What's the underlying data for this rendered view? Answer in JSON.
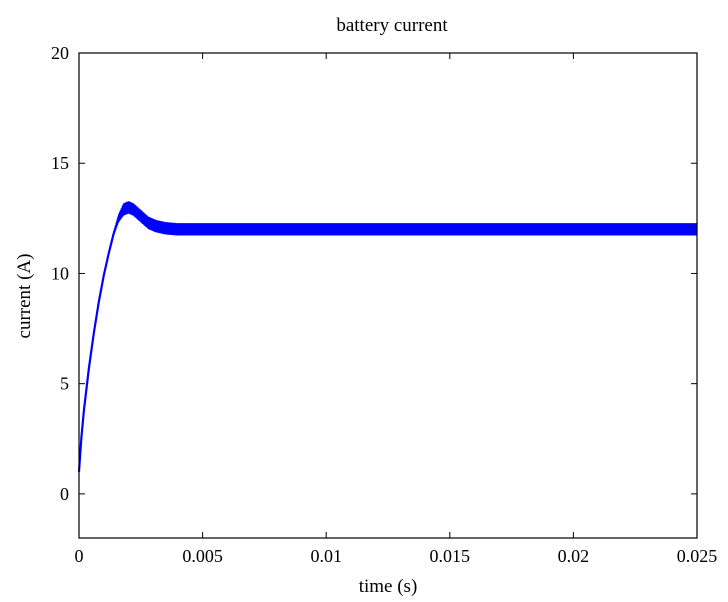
{
  "chart_data": {
    "type": "line",
    "title": "battery current",
    "xlabel": "time (s)",
    "ylabel": "current (A)",
    "xlim": [
      0,
      0.025
    ],
    "ylim": [
      -2,
      20
    ],
    "x_ticks": [
      0,
      0.005,
      0.01,
      0.015,
      0.02,
      0.025
    ],
    "x_tick_labels": [
      "0",
      "0.005",
      "0.01",
      "0.015",
      "0.02",
      "0.025"
    ],
    "y_ticks": [
      0,
      5,
      10,
      15,
      20
    ],
    "y_tick_labels": [
      "0",
      "5",
      "10",
      "15",
      "20"
    ],
    "grid": false,
    "series": [
      {
        "color": "#0000ff",
        "x": [
          0,
          0.0001,
          0.0002,
          0.0004,
          0.0006,
          0.0008,
          0.001,
          0.0012,
          0.0014,
          0.0016,
          0.0018,
          0.002,
          0.0022,
          0.0025,
          0.0028,
          0.0031,
          0.0035,
          0.004,
          0.0045,
          0.025
        ],
        "y": [
          1,
          2.6,
          3.8,
          5.7,
          7.3,
          8.7,
          9.9,
          10.9,
          11.8,
          12.5,
          12.9,
          13.0,
          12.9,
          12.6,
          12.3,
          12.15,
          12.05,
          12.0,
          12.0,
          12.0
        ],
        "ripple_amplitude": 0.28,
        "ripple_start_x": 0.0012
      }
    ]
  }
}
